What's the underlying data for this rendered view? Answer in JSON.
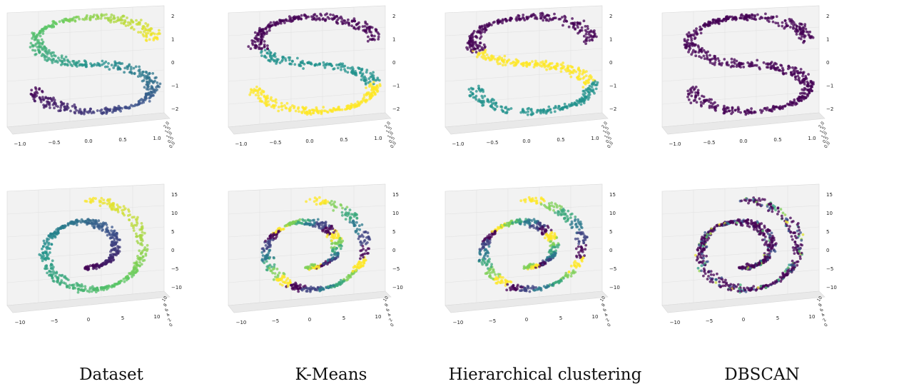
{
  "captions": [
    "Dataset",
    "K-Means",
    "Hierarchical clustering",
    "DBSCAN"
  ],
  "palette": [
    "#440154",
    "#3b528b",
    "#21918c",
    "#5ec962",
    "#fde725"
  ],
  "chart_data": [
    {
      "row": "top",
      "type": "scatter",
      "view": "3d",
      "xticks": [
        "−1.0",
        "−0.5",
        "0.0",
        "0.5",
        "1.0"
      ],
      "zticks": [
        "2",
        "1",
        "0",
        "−1",
        "−2"
      ],
      "yticks": [
        "0.0",
        "0.5",
        "1.0",
        "1.5",
        "2.0"
      ],
      "shape": "s-curve",
      "panels": [
        {
          "name": "Dataset",
          "coloring": "gradient"
        },
        {
          "name": "K-Means",
          "coloring": "clusters",
          "cluster_colors": [
            "#fde725",
            "#21918c",
            "#440154"
          ]
        },
        {
          "name": "Hierarchical clustering",
          "coloring": "clusters",
          "cluster_colors": [
            "#21918c",
            "#fde725",
            "#440154"
          ]
        },
        {
          "name": "DBSCAN",
          "coloring": "single",
          "cluster_colors": [
            "#440154"
          ]
        }
      ]
    },
    {
      "row": "bottom",
      "type": "scatter",
      "view": "3d",
      "xticks": [
        "−10",
        "−5",
        "0",
        "5",
        "10"
      ],
      "zticks": [
        "15",
        "10",
        "5",
        "0",
        "−5",
        "−10"
      ],
      "yticks": [
        "0",
        "2",
        "4",
        "6",
        "8",
        "10"
      ],
      "shape": "swiss-roll",
      "panels": [
        {
          "name": "Dataset",
          "coloring": "gradient"
        },
        {
          "name": "K-Means",
          "coloring": "clusters6"
        },
        {
          "name": "Hierarchical clustering",
          "coloring": "clusters6"
        },
        {
          "name": "DBSCAN",
          "coloring": "mixed"
        }
      ]
    }
  ]
}
